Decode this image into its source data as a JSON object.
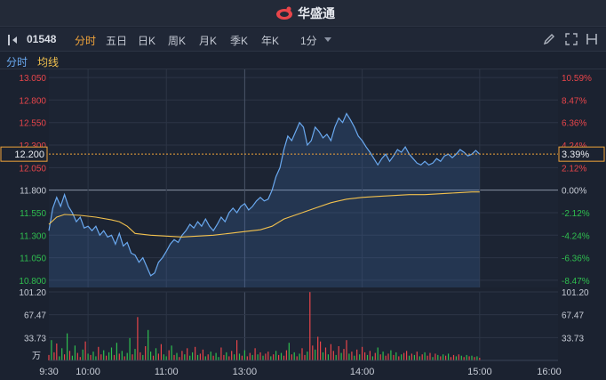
{
  "app": {
    "logo_text": "华盛通"
  },
  "toolbar": {
    "stock_code": "01548",
    "tabs": [
      "分时",
      "五日",
      "日K",
      "周K",
      "月K",
      "季K",
      "年K"
    ],
    "active_tab": "分时",
    "interval": "1分",
    "icons": [
      "pen-icon",
      "fullscreen-icon",
      "settings-icon"
    ]
  },
  "indicator_bar": {
    "label1": "分时",
    "label2": "均线"
  },
  "colors": {
    "up": "#e8454a",
    "down": "#2fbf4f",
    "price_line": "#6aa9f0",
    "avg_line": "#f2c14e",
    "active": "#f0a33a"
  },
  "chart_data": {
    "type": "line",
    "title": "",
    "prev_close": 11.8,
    "current_price_label": "12.200",
    "current_change_label": "3.39%",
    "y_ticks_left": [
      "13.050",
      "12.800",
      "12.550",
      "12.300",
      "12.050",
      "11.800",
      "11.550",
      "11.300",
      "11.050",
      "10.800"
    ],
    "y_ticks_right": [
      "10.59%",
      "8.47%",
      "6.36%",
      "4.24%",
      "2.12%",
      "0.00%",
      "-2.12%",
      "-4.24%",
      "-6.36%",
      "-8.47%"
    ],
    "x_ticks": [
      "9:30",
      "10:00",
      "11:00",
      "13:00",
      "14:00",
      "15:00",
      "16:00"
    ],
    "volume_ticks": [
      "101.20",
      "67.47",
      "33.73"
    ],
    "volume_unit": "万",
    "volume_max": 101.2,
    "ylim": [
      10.72,
      13.14
    ],
    "series": [
      {
        "key": "price",
        "points": [
          [
            0,
            11.35
          ],
          [
            3,
            11.6
          ],
          [
            6,
            11.72
          ],
          [
            9,
            11.62
          ],
          [
            12,
            11.75
          ],
          [
            15,
            11.62
          ],
          [
            18,
            11.55
          ],
          [
            21,
            11.45
          ],
          [
            24,
            11.5
          ],
          [
            27,
            11.38
          ],
          [
            30,
            11.4
          ],
          [
            33,
            11.35
          ],
          [
            36,
            11.4
          ],
          [
            39,
            11.3
          ],
          [
            42,
            11.35
          ],
          [
            45,
            11.28
          ],
          [
            48,
            11.3
          ],
          [
            51,
            11.2
          ],
          [
            54,
            11.32
          ],
          [
            57,
            11.18
          ],
          [
            60,
            11.22
          ],
          [
            63,
            11.1
          ],
          [
            66,
            11.08
          ],
          [
            69,
            11.0
          ],
          [
            72,
            11.05
          ],
          [
            75,
            10.95
          ],
          [
            78,
            10.85
          ],
          [
            81,
            10.88
          ],
          [
            84,
            11.0
          ],
          [
            87,
            11.05
          ],
          [
            90,
            11.12
          ],
          [
            93,
            11.2
          ],
          [
            96,
            11.25
          ],
          [
            99,
            11.22
          ],
          [
            102,
            11.3
          ],
          [
            105,
            11.35
          ],
          [
            108,
            11.42
          ],
          [
            111,
            11.38
          ],
          [
            114,
            11.45
          ],
          [
            117,
            11.4
          ],
          [
            120,
            11.48
          ],
          [
            123,
            11.4
          ],
          [
            126,
            11.35
          ],
          [
            129,
            11.42
          ],
          [
            132,
            11.5
          ],
          [
            135,
            11.45
          ],
          [
            138,
            11.55
          ],
          [
            141,
            11.6
          ],
          [
            144,
            11.55
          ],
          [
            147,
            11.62
          ],
          [
            150,
            11.65
          ],
          [
            153,
            11.58
          ],
          [
            156,
            11.62
          ],
          [
            159,
            11.68
          ],
          [
            162,
            11.72
          ],
          [
            165,
            11.68
          ],
          [
            168,
            11.7
          ],
          [
            171,
            11.8
          ],
          [
            174,
            11.95
          ],
          [
            177,
            12.05
          ],
          [
            180,
            12.25
          ],
          [
            183,
            12.4
          ],
          [
            186,
            12.35
          ],
          [
            189,
            12.45
          ],
          [
            192,
            12.55
          ],
          [
            195,
            12.5
          ],
          [
            198,
            12.3
          ],
          [
            201,
            12.35
          ],
          [
            204,
            12.5
          ],
          [
            207,
            12.45
          ],
          [
            210,
            12.38
          ],
          [
            213,
            12.42
          ],
          [
            216,
            12.35
          ],
          [
            219,
            12.5
          ],
          [
            222,
            12.6
          ],
          [
            225,
            12.55
          ],
          [
            228,
            12.65
          ],
          [
            231,
            12.58
          ],
          [
            234,
            12.5
          ],
          [
            237,
            12.4
          ],
          [
            240,
            12.35
          ],
          [
            243,
            12.28
          ],
          [
            246,
            12.22
          ],
          [
            249,
            12.15
          ],
          [
            252,
            12.08
          ],
          [
            255,
            12.15
          ],
          [
            258,
            12.2
          ],
          [
            261,
            12.12
          ],
          [
            264,
            12.18
          ],
          [
            267,
            12.25
          ],
          [
            270,
            12.22
          ],
          [
            273,
            12.28
          ],
          [
            276,
            12.2
          ],
          [
            279,
            12.15
          ],
          [
            282,
            12.1
          ],
          [
            285,
            12.08
          ],
          [
            288,
            12.12
          ],
          [
            291,
            12.08
          ],
          [
            294,
            12.1
          ],
          [
            297,
            12.15
          ],
          [
            300,
            12.12
          ],
          [
            303,
            12.18
          ],
          [
            306,
            12.2
          ],
          [
            309,
            12.16
          ],
          [
            312,
            12.2
          ],
          [
            315,
            12.25
          ],
          [
            318,
            12.22
          ],
          [
            321,
            12.18
          ],
          [
            324,
            12.2
          ],
          [
            327,
            12.24
          ],
          [
            330,
            12.2
          ]
        ]
      },
      {
        "key": "avg",
        "points": [
          [
            0,
            11.42
          ],
          [
            6,
            11.5
          ],
          [
            12,
            11.53
          ],
          [
            24,
            11.52
          ],
          [
            36,
            11.5
          ],
          [
            48,
            11.47
          ],
          [
            54,
            11.45
          ],
          [
            60,
            11.4
          ],
          [
            66,
            11.32
          ],
          [
            78,
            11.3
          ],
          [
            90,
            11.29
          ],
          [
            102,
            11.28
          ],
          [
            114,
            11.29
          ],
          [
            126,
            11.3
          ],
          [
            138,
            11.32
          ],
          [
            150,
            11.34
          ],
          [
            162,
            11.36
          ],
          [
            171,
            11.4
          ],
          [
            180,
            11.48
          ],
          [
            192,
            11.54
          ],
          [
            204,
            11.6
          ],
          [
            216,
            11.66
          ],
          [
            228,
            11.7
          ],
          [
            240,
            11.72
          ],
          [
            252,
            11.73
          ],
          [
            264,
            11.74
          ],
          [
            276,
            11.75
          ],
          [
            288,
            11.75
          ],
          [
            300,
            11.76
          ],
          [
            312,
            11.77
          ],
          [
            324,
            11.78
          ],
          [
            330,
            11.78
          ]
        ]
      }
    ],
    "volumes": [
      8,
      30,
      12,
      25,
      6,
      18,
      9,
      40,
      14,
      7,
      22,
      11,
      5,
      16,
      28,
      10,
      8,
      13,
      6,
      20,
      9,
      15,
      7,
      12,
      19,
      8,
      26,
      10,
      14,
      6,
      11,
      33,
      9,
      17,
      64,
      12,
      8,
      21,
      45,
      13,
      7,
      18,
      10,
      24,
      9,
      6,
      15,
      22,
      8,
      11,
      5,
      14,
      9,
      18,
      7,
      12,
      20,
      8,
      10,
      16,
      6,
      9,
      13,
      7,
      11,
      5,
      19,
      8,
      12,
      6,
      14,
      9,
      30,
      10,
      7,
      15,
      6,
      11,
      8,
      18,
      9,
      12,
      7,
      10,
      13,
      6,
      9,
      14,
      8,
      11,
      7,
      15,
      26,
      9,
      12,
      6,
      10,
      18,
      8,
      13,
      101,
      22,
      16,
      35,
      28,
      12,
      19,
      9,
      24,
      14,
      8,
      21,
      11,
      17,
      30,
      10,
      13,
      7,
      16,
      9,
      20,
      12,
      8,
      14,
      6,
      11,
      19,
      9,
      13,
      7,
      10,
      15,
      8,
      12,
      6,
      9,
      11,
      14,
      7,
      10,
      8,
      13,
      6,
      9,
      12,
      7,
      11,
      5,
      10,
      8,
      6,
      9,
      7,
      10,
      5,
      8,
      6,
      9,
      7,
      5,
      8,
      6,
      7,
      5,
      6,
      4
    ],
    "volume_up": [
      1,
      0,
      1,
      1,
      0,
      0,
      1,
      0,
      1,
      0,
      0,
      1,
      1,
      0,
      1,
      0,
      1,
      0,
      0,
      1,
      1,
      0,
      1,
      0,
      0,
      1,
      0,
      1,
      0,
      1,
      0,
      0,
      1,
      0,
      1,
      1,
      0,
      1,
      0,
      0,
      1,
      0,
      1,
      1,
      0,
      0,
      1,
      0,
      1,
      0,
      1,
      1,
      0,
      1,
      0,
      0,
      1,
      0,
      1,
      1,
      0,
      1,
      0,
      1,
      0,
      0,
      1,
      1,
      0,
      1,
      1,
      0,
      1,
      0,
      1,
      0,
      1,
      1,
      0,
      1,
      0,
      1,
      0,
      1,
      1,
      0,
      1,
      0,
      1,
      0,
      1,
      1,
      0,
      1,
      0,
      1,
      0,
      1,
      1,
      0,
      1,
      1,
      0,
      1,
      1,
      0,
      1,
      0,
      1,
      1,
      0,
      1,
      0,
      1,
      1,
      0,
      1,
      0,
      1,
      0,
      1,
      1,
      0,
      1,
      0,
      1,
      0,
      1,
      0,
      1,
      1,
      0,
      1,
      0,
      1,
      0,
      1,
      1,
      0,
      1,
      0,
      1,
      0,
      1,
      0,
      1,
      1,
      0,
      1,
      0,
      1,
      0,
      1,
      0,
      1,
      1,
      0,
      1,
      0,
      1,
      0,
      1,
      0,
      1,
      0,
      1
    ]
  }
}
